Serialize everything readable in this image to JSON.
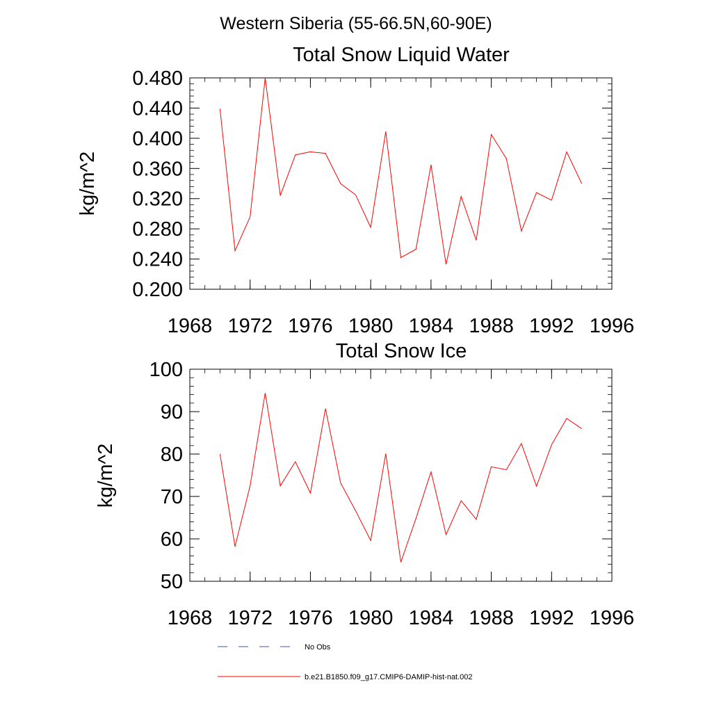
{
  "figure": {
    "suptitle": "Western Siberia (55-66.5N,60-90E)",
    "colors": {
      "series_line": "#ff0000",
      "obs_line": "#3d5aa8",
      "axes": "#000000"
    }
  },
  "legend": {
    "placement": "bottom-center",
    "items": [
      {
        "label": "No Obs",
        "style": "dashed",
        "color": "#3d5aa8"
      },
      {
        "label": "b.e21.B1850.f09_g17.CMIP6-DAMIP-hist-nat.002",
        "style": "solid",
        "color": "#ff0000"
      }
    ]
  },
  "chart_data": [
    {
      "type": "line",
      "title": "Total Snow Liquid Water",
      "xlabel": "",
      "ylabel": "kg/m^2",
      "xlim": [
        1968,
        1996
      ],
      "ylim": [
        0.2,
        0.48
      ],
      "xticks": [
        1968,
        1972,
        1976,
        1980,
        1984,
        1988,
        1992,
        1996
      ],
      "xtick_labels": [
        "1968",
        "1972",
        "1976",
        "1980",
        "1984",
        "1988",
        "1992",
        "1996"
      ],
      "yticks": [
        0.2,
        0.24,
        0.28,
        0.32,
        0.36,
        0.4,
        0.44,
        0.48
      ],
      "ytick_labels": [
        "0.200",
        "0.240",
        "0.280",
        "0.320",
        "0.360",
        "0.400",
        "0.440",
        "0.480"
      ],
      "grid": false,
      "x": [
        1970,
        1971,
        1972,
        1973,
        1974,
        1975,
        1976,
        1977,
        1978,
        1979,
        1980,
        1981,
        1982,
        1983,
        1984,
        1985,
        1986,
        1987,
        1988,
        1989,
        1990,
        1991,
        1992,
        1993,
        1994
      ],
      "series": [
        {
          "name": "b.e21.B1850.f09_g17.CMIP6-DAMIP-hist-nat.002",
          "values": [
            0.439,
            0.251,
            0.296,
            0.48,
            0.324,
            0.378,
            0.382,
            0.38,
            0.34,
            0.325,
            0.282,
            0.409,
            0.242,
            0.253,
            0.365,
            0.233,
            0.323,
            0.265,
            0.405,
            0.373,
            0.277,
            0.328,
            0.318,
            0.382,
            0.34
          ]
        }
      ]
    },
    {
      "type": "line",
      "title": "Total Snow Ice",
      "xlabel": "",
      "ylabel": "kg/m^2",
      "xlim": [
        1968,
        1996
      ],
      "ylim": [
        50,
        100
      ],
      "xticks": [
        1968,
        1972,
        1976,
        1980,
        1984,
        1988,
        1992,
        1996
      ],
      "xtick_labels": [
        "1968",
        "1972",
        "1976",
        "1980",
        "1984",
        "1988",
        "1992",
        "1996"
      ],
      "yticks": [
        50,
        60,
        70,
        80,
        90,
        100
      ],
      "ytick_labels": [
        "50",
        "60",
        "70",
        "80",
        "90",
        "100"
      ],
      "grid": false,
      "x": [
        1970,
        1971,
        1972,
        1973,
        1974,
        1975,
        1976,
        1977,
        1978,
        1979,
        1980,
        1981,
        1982,
        1983,
        1984,
        1985,
        1986,
        1987,
        1988,
        1989,
        1990,
        1991,
        1992,
        1993,
        1994
      ],
      "series": [
        {
          "name": "b.e21.B1850.f09_g17.CMIP6-DAMIP-hist-nat.002",
          "values": [
            80.0,
            58.2,
            72.5,
            94.4,
            72.5,
            78.2,
            70.8,
            90.7,
            73.2,
            66.6,
            59.6,
            80.1,
            54.5,
            64.8,
            75.8,
            61.0,
            69.0,
            64.6,
            77.0,
            76.3,
            82.5,
            72.4,
            82.2,
            88.4,
            86.0
          ]
        }
      ]
    }
  ]
}
